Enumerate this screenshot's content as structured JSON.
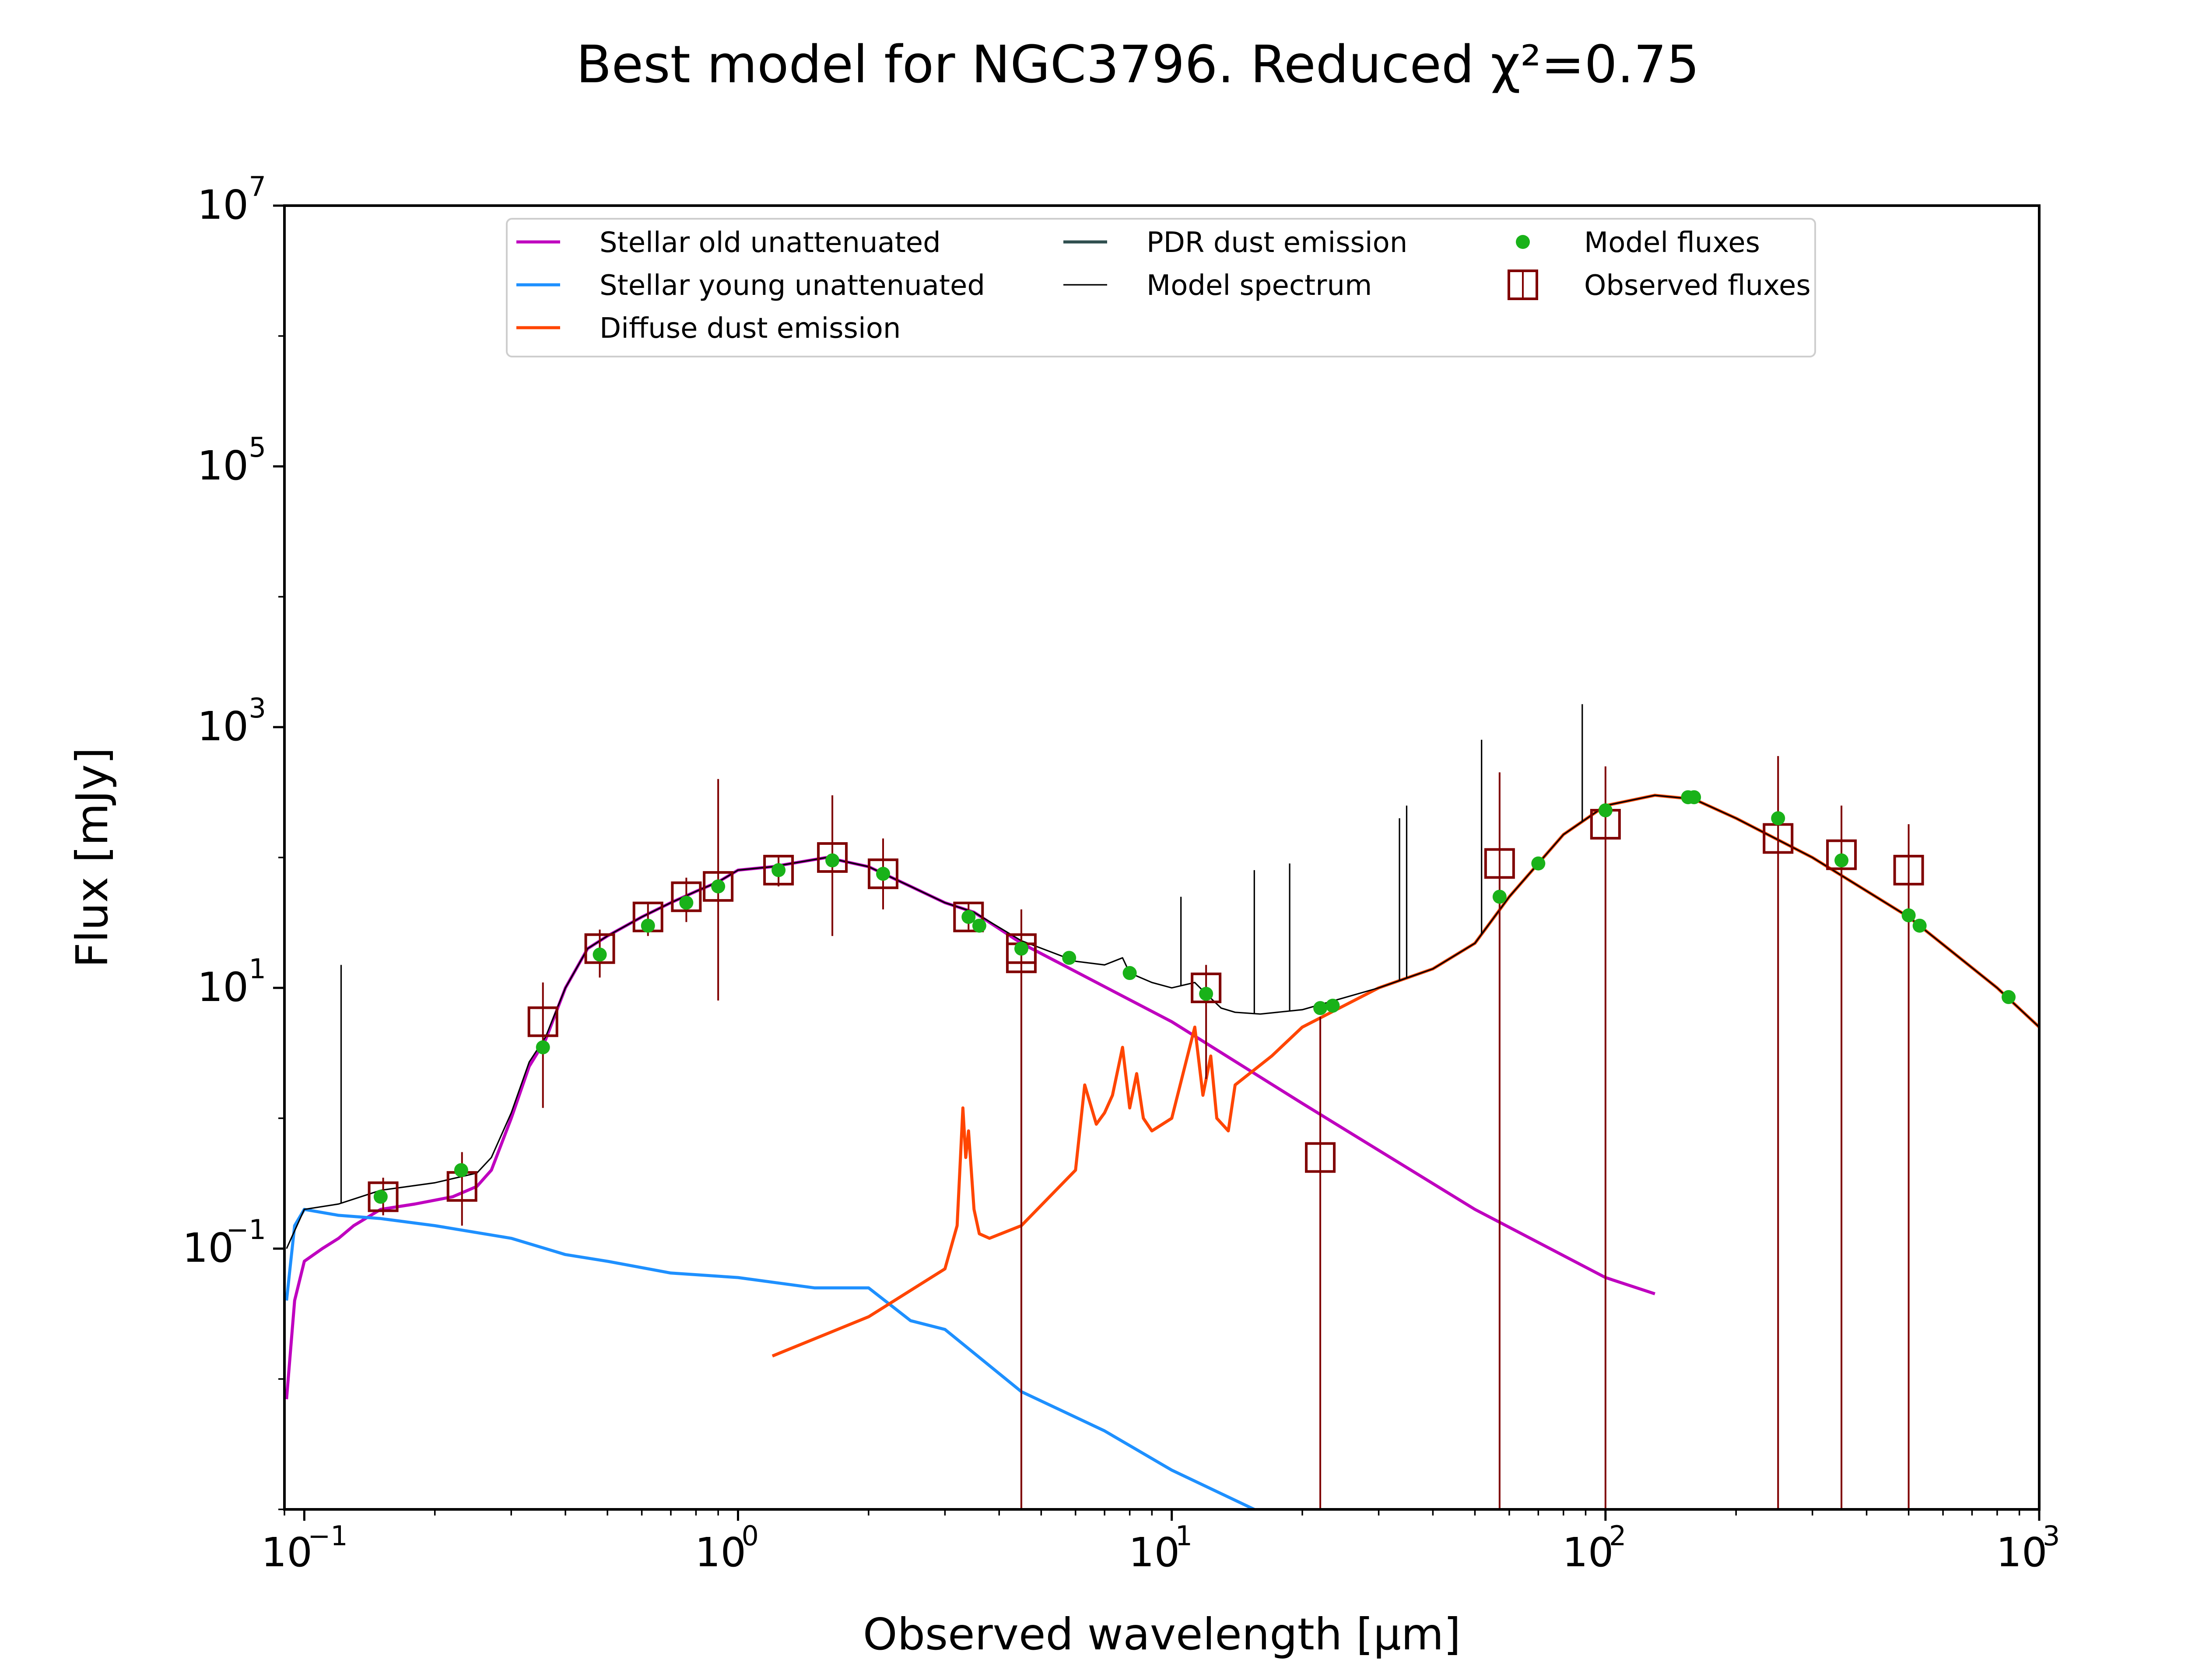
{
  "chart_data": {
    "type": "line",
    "title": "Best model for NGC3796. Reduced χ²=0.75",
    "xlabel": "Observed wavelength [μm]",
    "ylabel": "Flux [mJy]",
    "xscale": "log",
    "yscale": "log",
    "xlim": [
      0.09,
      1000
    ],
    "ylim": [
      0.001,
      10000000
    ],
    "x_ticks": [
      {
        "base": "10",
        "exp": "−1",
        "value": 0.1
      },
      {
        "base": "10",
        "exp": "0",
        "value": 1
      },
      {
        "base": "10",
        "exp": "1",
        "value": 10
      },
      {
        "base": "10",
        "exp": "2",
        "value": 100
      },
      {
        "base": "10",
        "exp": "3",
        "value": 1000
      }
    ],
    "y_ticks": [
      {
        "base": "10",
        "exp": "−1",
        "value": 0.1
      },
      {
        "base": "10",
        "exp": "1",
        "value": 10
      },
      {
        "base": "10",
        "exp": "3",
        "value": 1000
      },
      {
        "base": "10",
        "exp": "5",
        "value": 100000
      },
      {
        "base": "10",
        "exp": "7",
        "value": 10000000
      }
    ],
    "grid": false,
    "legend_position": "top",
    "legend": [
      {
        "label": "Stellar old unattenuated",
        "kind": "line",
        "color": "#bf00bf"
      },
      {
        "label": "Stellar young unattenuated",
        "kind": "line",
        "color": "#1e90ff"
      },
      {
        "label": "Diffuse dust emission",
        "kind": "line",
        "color": "#ff4500"
      },
      {
        "label": "PDR dust emission",
        "kind": "line",
        "color": "#2f4f4f"
      },
      {
        "label": "Model spectrum",
        "kind": "thin-line",
        "color": "#000000"
      },
      {
        "label": "Model fluxes",
        "kind": "dot",
        "color": "#19b219"
      },
      {
        "label": "Observed fluxes",
        "kind": "square",
        "color": "#800000"
      }
    ],
    "series": [
      {
        "name": "Stellar old unattenuated",
        "color": "#bf00bf",
        "x": [
          0.091,
          0.095,
          0.1,
          0.11,
          0.12,
          0.13,
          0.15,
          0.18,
          0.22,
          0.25,
          0.27,
          0.3,
          0.33,
          0.36,
          0.4,
          0.45,
          0.5,
          0.6,
          0.7,
          0.8,
          0.9,
          1.0,
          1.2,
          1.6,
          2.0,
          2.5,
          3.0,
          3.5,
          4.5,
          10,
          20,
          50,
          100,
          130
        ],
        "y": [
          0.007,
          0.04,
          0.08,
          0.1,
          0.12,
          0.15,
          0.2,
          0.22,
          0.25,
          0.3,
          0.4,
          1.0,
          2.5,
          4.0,
          10,
          20,
          25,
          35,
          45,
          55,
          65,
          80,
          85,
          100,
          85,
          60,
          45,
          38,
          22,
          5.5,
          1.3,
          0.2,
          0.06,
          0.045
        ]
      },
      {
        "name": "Stellar young unattenuated",
        "color": "#1e90ff",
        "x": [
          0.091,
          0.095,
          0.1,
          0.12,
          0.15,
          0.2,
          0.3,
          0.4,
          0.5,
          0.7,
          1.0,
          1.5,
          2.0,
          2.5,
          3.0,
          4.5,
          7,
          10,
          15.5
        ],
        "y": [
          0.04,
          0.15,
          0.2,
          0.18,
          0.17,
          0.15,
          0.12,
          0.09,
          0.08,
          0.065,
          0.06,
          0.05,
          0.05,
          0.028,
          0.024,
          0.008,
          0.004,
          0.002,
          0.001
        ]
      },
      {
        "name": "Diffuse dust emission",
        "color": "#ff4500",
        "x": [
          1.2,
          2.0,
          3.0,
          3.2,
          3.3,
          3.35,
          3.4,
          3.5,
          3.6,
          3.8,
          4.5,
          6.0,
          6.3,
          6.7,
          7.0,
          7.3,
          7.7,
          8.0,
          8.3,
          8.6,
          9.0,
          10.0,
          11.3,
          11.8,
          12.3,
          12.7,
          13.5,
          14.0,
          17.0,
          20.0,
          30.0,
          40.0,
          50.0,
          60.0,
          80.0,
          100.0,
          130.0,
          160.0,
          200.0,
          300.0,
          500.0,
          800.0,
          1000.0
        ],
        "y": [
          0.015,
          0.03,
          0.07,
          0.15,
          1.2,
          0.5,
          0.8,
          0.2,
          0.13,
          0.12,
          0.15,
          0.4,
          1.8,
          0.9,
          1.1,
          1.5,
          3.5,
          1.2,
          2.2,
          1.0,
          0.8,
          1.0,
          5.0,
          1.5,
          3.0,
          1.0,
          0.8,
          1.8,
          3.0,
          5.0,
          10.0,
          14.0,
          22.0,
          50.0,
          150.0,
          250.0,
          300.0,
          280.0,
          200.0,
          100.0,
          35.0,
          10.0,
          5.0
        ]
      },
      {
        "name": "Model spectrum",
        "color": "#000000",
        "x": [
          0.091,
          0.1,
          0.12,
          0.15,
          0.2,
          0.25,
          0.27,
          0.3,
          0.33,
          0.36,
          0.4,
          0.45,
          0.5,
          0.6,
          0.7,
          0.8,
          0.9,
          1.0,
          1.2,
          1.6,
          2.0,
          2.5,
          3.0,
          3.5,
          4.5,
          6.0,
          7.0,
          7.7,
          8.0,
          9.0,
          10.0,
          11.3,
          12.0,
          13.0,
          14.0,
          16.0,
          20.0,
          30.0,
          40.0,
          50.0,
          60.0,
          80.0,
          100.0,
          130.0,
          160.0,
          200.0,
          300.0,
          500.0,
          800.0,
          1000.0
        ],
        "y": [
          0.1,
          0.2,
          0.22,
          0.28,
          0.32,
          0.38,
          0.5,
          1.1,
          2.7,
          4.2,
          10,
          20,
          25,
          35,
          45,
          55,
          65,
          80,
          85,
          100,
          85,
          60,
          45,
          38,
          23,
          16,
          15,
          17,
          13,
          11,
          10,
          11,
          9,
          7,
          6.5,
          6.3,
          6.8,
          10,
          14,
          22,
          50,
          150,
          250,
          300,
          280,
          200,
          100,
          35,
          10,
          5
        ]
      }
    ],
    "emission_lines": [
      {
        "x": 0.1216,
        "y": 15
      },
      {
        "x": 10.5,
        "y": 50
      },
      {
        "x": 15.5,
        "y": 80
      },
      {
        "x": 18.7,
        "y": 90
      },
      {
        "x": 33.5,
        "y": 200
      },
      {
        "x": 34.8,
        "y": 250
      },
      {
        "x": 51.8,
        "y": 800
      },
      {
        "x": 88.4,
        "y": 1500
      }
    ],
    "model_fluxes": {
      "x": [
        0.15,
        0.23,
        0.355,
        0.48,
        0.62,
        0.76,
        0.9,
        1.24,
        1.65,
        2.16,
        3.4,
        3.6,
        4.5,
        5.8,
        8.0,
        12.0,
        22.0,
        23.5,
        57.0,
        70.0,
        100.0,
        155.0,
        160.0,
        250.0,
        350.0,
        500.0,
        530.0,
        850.0
      ],
      "y": [
        0.25,
        0.4,
        3.5,
        18,
        30,
        45,
        60,
        80,
        95,
        75,
        35,
        30,
        20,
        17,
        13,
        9,
        7,
        7.3,
        50,
        90,
        230,
        290,
        290,
        200,
        95,
        36,
        30,
        8.5
      ]
    },
    "observed_fluxes": {
      "x": [
        0.152,
        0.231,
        0.355,
        0.48,
        0.62,
        0.76,
        0.9,
        1.24,
        1.65,
        2.16,
        3.4,
        4.5,
        4.5,
        12.0,
        22.0,
        57.0,
        100.0,
        250.0,
        350.0,
        500.0
      ],
      "y": [
        0.25,
        0.3,
        5.5,
        20,
        35,
        50,
        60,
        80,
        100,
        75,
        35,
        20,
        17,
        10,
        0.5,
        90,
        180,
        140,
        105,
        80
      ],
      "err_low": [
        0.18,
        0.15,
        1.2,
        12,
        25,
        32,
        8,
        60,
        25,
        40,
        28,
        0.001,
        0.001,
        2,
        0.001,
        0.001,
        0.001,
        0.001,
        0.001,
        0.001
      ],
      "err_high": [
        0.35,
        0.55,
        11,
        28,
        45,
        70,
        400,
        100,
        300,
        140,
        45,
        40,
        25,
        15,
        6,
        450,
        500,
        600,
        250,
        180
      ]
    }
  }
}
